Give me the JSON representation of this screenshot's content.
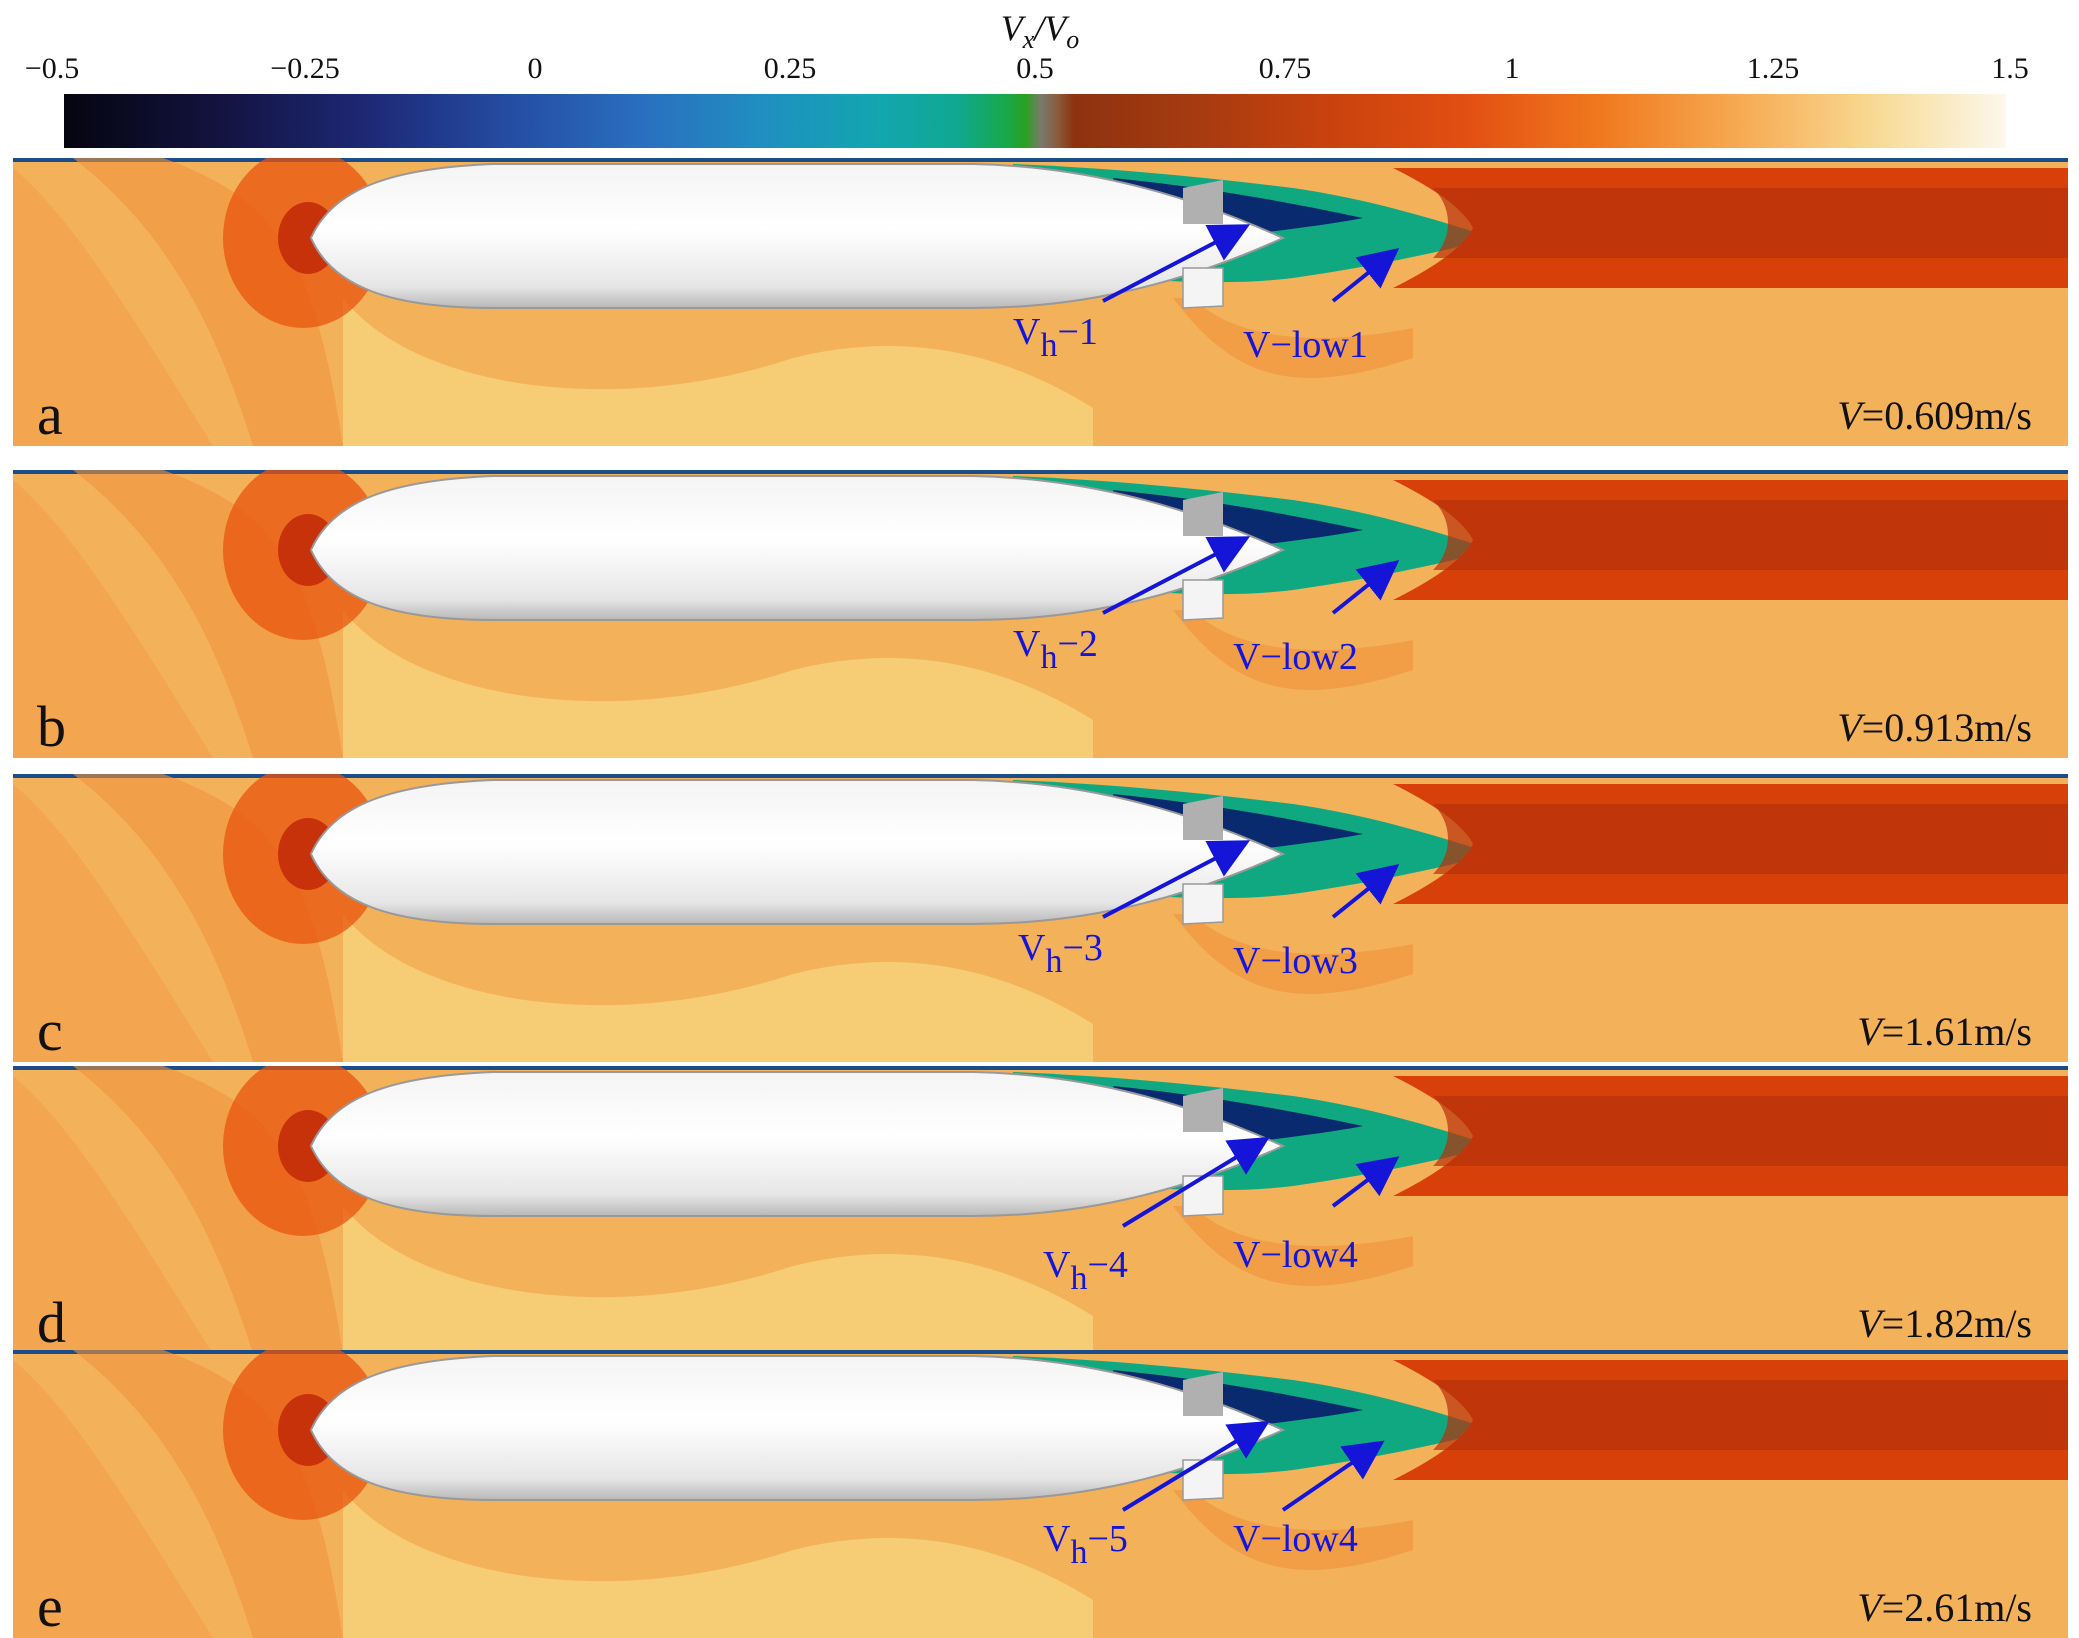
{
  "colorbar": {
    "title_main": "V",
    "title_sub_x": "x",
    "title_slash": "/",
    "title_denom": "V",
    "title_sub_o": "o",
    "ticks": [
      "−0.5",
      "−0.25",
      "0",
      "0.25",
      "0.5",
      "0.75",
      "1",
      "1.25",
      "1.5"
    ],
    "range": [
      -0.5,
      1.5
    ]
  },
  "panels": [
    {
      "letter": "a",
      "speed_var": "V",
      "speed_value": "=0.609m/s",
      "vh_prefix": "V",
      "vh_sub": "h",
      "vh_suffix": "−1",
      "vlow": "V−low1"
    },
    {
      "letter": "b",
      "speed_var": "V",
      "speed_value": "=0.913m/s",
      "vh_prefix": "V",
      "vh_sub": "h",
      "vh_suffix": "−2",
      "vlow": "V−low2"
    },
    {
      "letter": "c",
      "speed_var": "V",
      "speed_value": "=1.61m/s",
      "vh_prefix": "V",
      "vh_sub": "h",
      "vh_suffix": "−3",
      "vlow": "V−low3"
    },
    {
      "letter": "d",
      "speed_var": "V",
      "speed_value": "=1.82m/s",
      "vh_prefix": "V",
      "vh_sub": "h",
      "vh_suffix": "−4",
      "vlow": "V−low4"
    },
    {
      "letter": "e",
      "speed_var": "V",
      "speed_value": "=2.61m/s",
      "vh_prefix": "V",
      "vh_sub": "h",
      "vh_suffix": "−5",
      "vlow": "V−low4"
    }
  ],
  "colors": {
    "annotation": "#1515d8",
    "freestream": "#f3b25a",
    "wake": "#d8400a"
  }
}
